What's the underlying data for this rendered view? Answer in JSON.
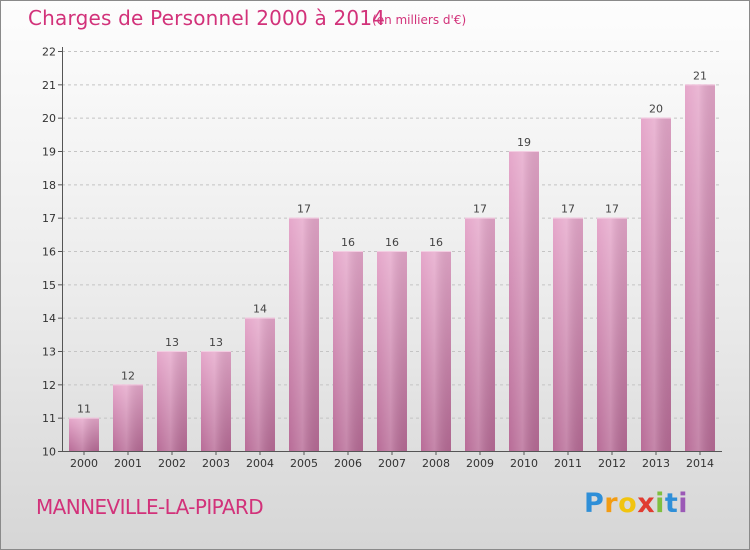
{
  "header": {
    "title": "Charges de Personnel 2000 à 2014",
    "subtitle": "(en milliers d'€)"
  },
  "footer": {
    "city": "MANNEVILLE-LA-PIPARD",
    "brand_letters": [
      {
        "char": "P",
        "color": "#2f8fd8"
      },
      {
        "char": "r",
        "color": "#f39c12"
      },
      {
        "char": "o",
        "color": "#f1c40f"
      },
      {
        "char": "x",
        "color": "#e03c31"
      },
      {
        "char": "i",
        "color": "#7fbf3f"
      },
      {
        "char": "t",
        "color": "#2f8fd8"
      },
      {
        "char": "i",
        "color": "#9b59b6"
      }
    ]
  },
  "colors": {
    "bar_light": "#e6a8cb",
    "bar_dark": "#b86c97",
    "title": "#d2327a"
  },
  "chart_data": {
    "type": "bar",
    "title": "Charges de Personnel 2000 à 2014",
    "subtitle": "(en milliers d'€)",
    "categories": [
      "2000",
      "2001",
      "2002",
      "2003",
      "2004",
      "2005",
      "2006",
      "2007",
      "2008",
      "2009",
      "2010",
      "2011",
      "2012",
      "2013",
      "2014"
    ],
    "values": [
      11,
      12,
      13,
      13,
      14,
      17,
      16,
      16,
      16,
      17,
      19,
      17,
      17,
      20,
      21
    ],
    "ylim": [
      10,
      22
    ],
    "yticks": [
      10,
      11,
      12,
      13,
      14,
      15,
      16,
      17,
      18,
      19,
      20,
      21,
      22
    ],
    "grid": true,
    "legend": "none"
  }
}
